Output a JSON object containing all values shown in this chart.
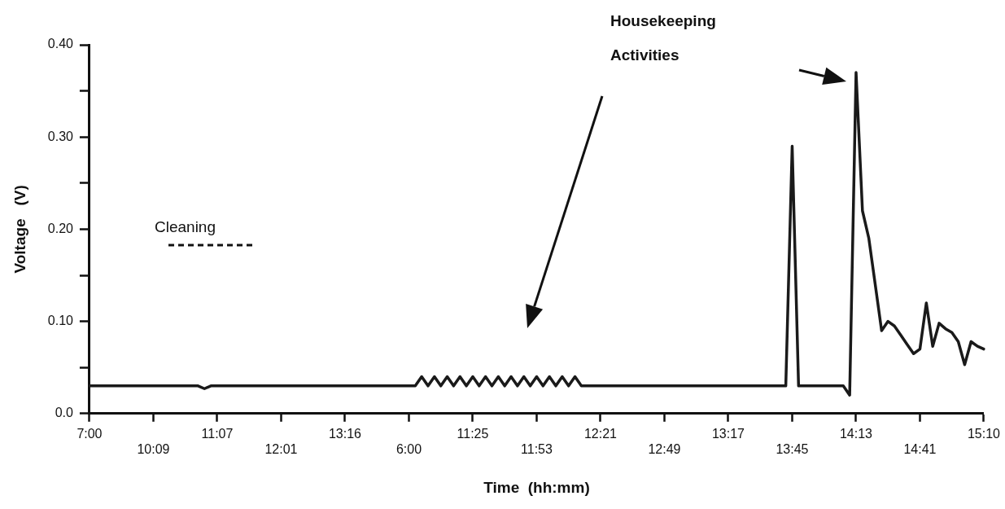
{
  "chart_data": {
    "type": "line",
    "xlabel": "Time  (hh:mm)",
    "ylabel": "Voltage   (V)",
    "annotations": [
      "Cleaning",
      "Housekeeping\nActivities"
    ],
    "categories": [
      "7:00",
      null,
      null,
      null,
      null,
      null,
      null,
      null,
      null,
      null,
      "10:09",
      null,
      null,
      null,
      null,
      null,
      null,
      null,
      null,
      null,
      "11:07",
      null,
      null,
      null,
      null,
      null,
      null,
      null,
      null,
      null,
      "12:01",
      null,
      null,
      null,
      null,
      null,
      null,
      null,
      null,
      null,
      "13:16",
      null,
      null,
      null,
      null,
      null,
      null,
      null,
      null,
      null,
      "6:00",
      null,
      null,
      null,
      null,
      null,
      null,
      null,
      null,
      null,
      "11:25",
      null,
      null,
      null,
      null,
      null,
      null,
      null,
      null,
      null,
      "11:53",
      null,
      null,
      null,
      null,
      null,
      null,
      null,
      null,
      null,
      "12:21",
      null,
      null,
      null,
      null,
      null,
      null,
      null,
      null,
      null,
      "12:49",
      null,
      null,
      null,
      null,
      null,
      null,
      null,
      null,
      null,
      "13:17",
      null,
      null,
      null,
      null,
      null,
      null,
      null,
      null,
      null,
      "13:45",
      null,
      null,
      null,
      null,
      null,
      null,
      null,
      null,
      null,
      "14:13",
      null,
      null,
      null,
      null,
      null,
      null,
      null,
      null,
      null,
      "14:41",
      null,
      null,
      null,
      null,
      null,
      null,
      null,
      null,
      null,
      "15:10"
    ],
    "ylim": [
      0,
      0.4
    ],
    "yticks": [
      {
        "value": 0,
        "label": "0.0"
      },
      {
        "value": 0.05,
        "label": null
      },
      {
        "value": 0.1,
        "label": "0.10"
      },
      {
        "value": 0.15,
        "label": null
      },
      {
        "value": 0.2,
        "label": "0.20"
      },
      {
        "value": 0.25,
        "label": null
      },
      {
        "value": 0.3,
        "label": "0.30"
      },
      {
        "value": 0.35,
        "label": null
      },
      {
        "value": 0.4,
        "label": "0.40"
      }
    ],
    "grid": false,
    "legend": false,
    "marker": "none",
    "line_style": "solid",
    "series": [
      {
        "color": "#1a1a1a",
        "values": [
          0.03,
          0.03,
          0.03,
          0.03,
          0.03,
          0.03,
          0.03,
          0.03,
          0.03,
          0.03,
          0.03,
          0.03,
          0.03,
          0.03,
          0.03,
          0.03,
          0.03,
          0.03,
          0.027,
          0.03,
          0.03,
          0.03,
          0.03,
          0.03,
          0.03,
          0.03,
          0.03,
          0.03,
          0.03,
          0.03,
          0.03,
          0.03,
          0.03,
          0.03,
          0.03,
          0.03,
          0.03,
          0.03,
          0.03,
          0.03,
          0.03,
          0.03,
          0.03,
          0.03,
          0.03,
          0.03,
          0.03,
          0.03,
          0.03,
          0.03,
          0.03,
          0.03,
          0.04,
          0.03,
          0.04,
          0.03,
          0.04,
          0.03,
          0.04,
          0.03,
          0.04,
          0.03,
          0.04,
          0.03,
          0.04,
          0.03,
          0.04,
          0.03,
          0.04,
          0.03,
          0.04,
          0.03,
          0.04,
          0.03,
          0.04,
          0.03,
          0.04,
          0.03,
          0.03,
          0.03,
          0.03,
          0.03,
          0.03,
          0.03,
          0.03,
          0.03,
          0.03,
          0.03,
          0.03,
          0.03,
          0.03,
          0.03,
          0.03,
          0.03,
          0.03,
          0.03,
          0.03,
          0.03,
          0.03,
          0.03,
          0.03,
          0.03,
          0.03,
          0.03,
          0.03,
          0.03,
          0.03,
          0.03,
          0.03,
          0.03,
          0.29,
          0.03,
          0.03,
          0.03,
          0.03,
          0.03,
          0.03,
          0.03,
          0.03,
          0.02,
          0.37,
          0.22,
          0.19,
          0.14,
          0.09,
          0.1,
          0.095,
          0.085,
          0.075,
          0.065,
          0.07,
          0.12,
          0.073,
          0.098,
          0.092,
          0.088,
          0.078,
          0.053,
          0.078,
          0.073,
          0.07
        ]
      }
    ]
  }
}
